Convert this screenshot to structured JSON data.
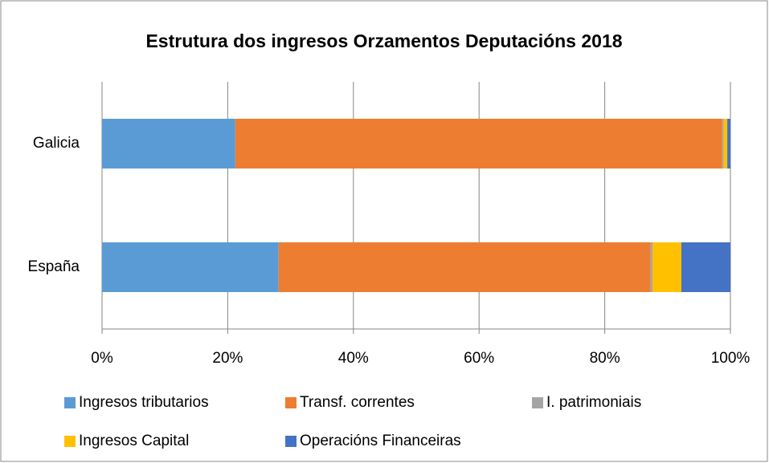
{
  "chart_data": {
    "type": "stacked_barh",
    "title": "Estrutura dos ingresos Orzamentos Deputacións 2018",
    "categories": [
      "Galicia",
      "España"
    ],
    "series": [
      {
        "name": "Ingresos tributarios",
        "color": "#5b9bd5",
        "values": [
          21.2,
          28.1
        ]
      },
      {
        "name": "Transf. correntes",
        "color": "#ed7d31",
        "values": [
          77.5,
          59.2
        ]
      },
      {
        "name": "I. patrimoniais",
        "color": "#a5a5a5",
        "values": [
          0.2,
          0.3
        ]
      },
      {
        "name": "Ingresos Capital",
        "color": "#ffc000",
        "values": [
          0.6,
          4.6
        ]
      },
      {
        "name": "Operacións Financeiras",
        "color": "#4472c4",
        "values": [
          0.5,
          7.8
        ]
      }
    ],
    "xlim": [
      0,
      100
    ],
    "xticks": [
      {
        "value": 0,
        "label": "0%"
      },
      {
        "value": 20,
        "label": "20%"
      },
      {
        "value": 40,
        "label": "40%"
      },
      {
        "value": 60,
        "label": "60%"
      },
      {
        "value": 80,
        "label": "80%"
      },
      {
        "value": 100,
        "label": "100%"
      }
    ],
    "grid": true,
    "legend": "bottom"
  }
}
